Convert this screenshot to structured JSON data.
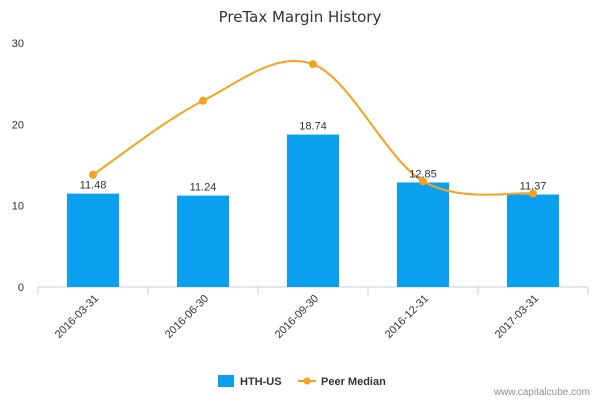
{
  "chart_data": {
    "type": "bar",
    "title": "PreTax Margin History",
    "categories": [
      "2016-03-31",
      "2016-06-30",
      "2016-09-30",
      "2016-12-31",
      "2017-03-31"
    ],
    "ylim": [
      0,
      30
    ],
    "yticks": [
      "0",
      "10",
      "20",
      "30"
    ],
    "grid": false,
    "legend_position": "bottom",
    "series": [
      {
        "name": "HTH-US",
        "type": "bar",
        "color": "#0aa0ef",
        "values": [
          11.48,
          11.24,
          18.74,
          12.85,
          11.37
        ],
        "labels": [
          "11.48",
          "11.24",
          "18.74",
          "12.85",
          "11.37"
        ]
      },
      {
        "name": "Peer Median",
        "type": "line",
        "smooth": true,
        "color": "#f7a21b",
        "values": [
          13.8,
          22.9,
          27.4,
          13.0,
          11.5
        ]
      }
    ]
  },
  "credit": "www.capitalcube.com"
}
